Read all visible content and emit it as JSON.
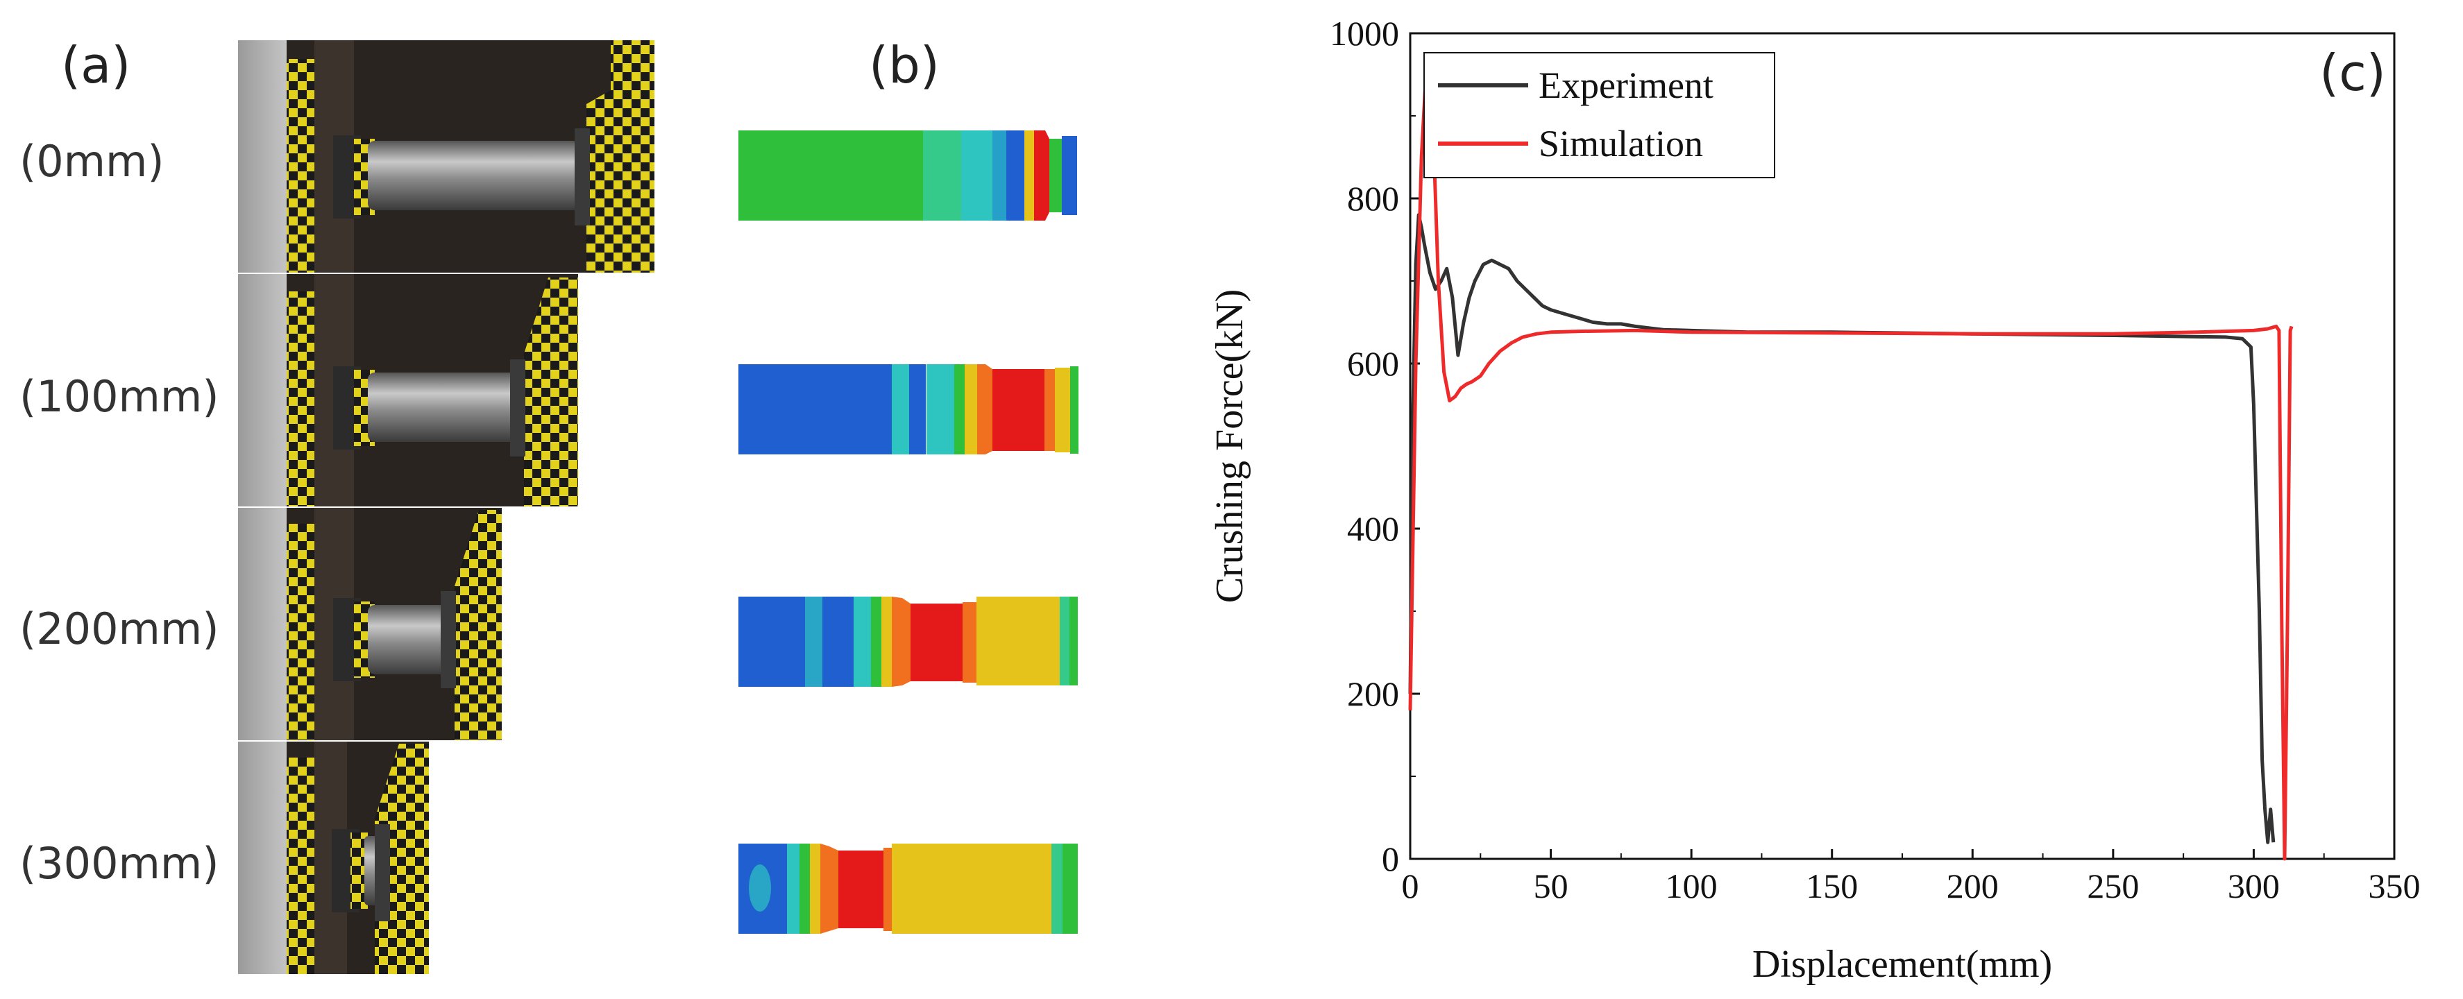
{
  "panels": {
    "a": {
      "label": "(a)",
      "rows": [
        "(0mm)",
        "(100mm)",
        "(200mm)",
        "(300mm)"
      ]
    },
    "b": {
      "label": "(b)"
    },
    "c": {
      "label": "(c)"
    }
  },
  "colors": {
    "experiment": "#333333",
    "simulation": "#ee2a2a",
    "fem_blue": "#1f5fcf",
    "fem_cyan": "#2ec4c0",
    "fem_green": "#2fbf3a",
    "fem_yellow": "#e6c31b",
    "fem_red": "#e41a1a"
  },
  "chart_data": {
    "type": "line",
    "title": "",
    "xlabel": "Displacement(mm)",
    "ylabel": "Crushing Force(kN)",
    "xlim": [
      0,
      350
    ],
    "ylim": [
      0,
      1000
    ],
    "xticks": [
      0,
      50,
      100,
      150,
      200,
      250,
      300,
      350
    ],
    "yticks": [
      0,
      200,
      400,
      600,
      800,
      1000
    ],
    "legend_position": "top-left",
    "series": [
      {
        "name": "Experiment",
        "color": "#333333",
        "x": [
          0,
          1,
          2,
          3,
          4,
          5,
          7,
          9,
          11,
          13,
          15,
          17,
          19,
          21,
          23,
          26,
          29,
          32,
          35,
          38,
          41,
          44,
          47,
          50,
          55,
          60,
          65,
          70,
          75,
          80,
          85,
          90,
          100,
          120,
          150,
          200,
          250,
          290,
          296,
          299,
          300,
          302,
          303,
          304,
          305,
          306,
          307
        ],
        "values": [
          200,
          550,
          720,
          780,
          765,
          745,
          710,
          690,
          700,
          715,
          680,
          610,
          650,
          680,
          700,
          720,
          725,
          720,
          715,
          700,
          690,
          680,
          670,
          665,
          660,
          655,
          650,
          648,
          648,
          645,
          643,
          641,
          640,
          638,
          638,
          636,
          634,
          632,
          630,
          620,
          550,
          300,
          120,
          60,
          20,
          60,
          20
        ]
      },
      {
        "name": "Simulation",
        "color": "#ee2a2a",
        "x": [
          0,
          2,
          4,
          6,
          8,
          10,
          12,
          14,
          16,
          18,
          20,
          22,
          25,
          28,
          32,
          36,
          40,
          45,
          50,
          60,
          80,
          100,
          150,
          200,
          250,
          280,
          300,
          305,
          308,
          309,
          310,
          311,
          312,
          313,
          313.5
        ],
        "values": [
          180,
          600,
          850,
          975,
          900,
          700,
          590,
          555,
          560,
          570,
          575,
          578,
          585,
          600,
          615,
          625,
          632,
          636,
          638,
          639,
          640,
          638,
          637,
          636,
          636,
          638,
          640,
          642,
          645,
          640,
          280,
          0,
          280,
          640,
          645
        ]
      }
    ]
  }
}
